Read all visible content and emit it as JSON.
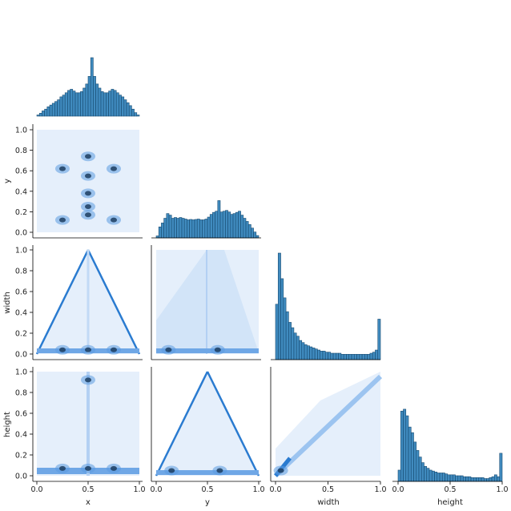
{
  "chart_data": {
    "type": "pairplot",
    "variables": [
      "x",
      "y",
      "width",
      "height"
    ],
    "corner": true,
    "diag_kind": "histogram",
    "offdiag_kind": "2d-histogram",
    "colors": {
      "hist": "#1f77b4",
      "hist_edge": "#1a4c72",
      "density_light": "#d7e7fa",
      "density_dark": "#1c3d60"
    },
    "axis_range": [
      0.0,
      1.0
    ],
    "ticks": [
      0.0,
      0.2,
      0.4,
      0.6,
      0.8,
      1.0
    ],
    "ticks_x": [
      0.0,
      0.5,
      1.0
    ],
    "tick_labels": [
      "0.0",
      "0.2",
      "0.4",
      "0.6",
      "0.8",
      "1.0"
    ],
    "tick_labels_x": [
      "0.0",
      "0.5",
      "1.0"
    ],
    "diagonal_histograms": [
      {
        "variable": "x",
        "bins": 40,
        "values": [
          0.02,
          0.05,
          0.09,
          0.12,
          0.16,
          0.19,
          0.22,
          0.25,
          0.28,
          0.33,
          0.36,
          0.4,
          0.44,
          0.46,
          0.43,
          0.4,
          0.4,
          0.42,
          0.48,
          0.55,
          0.68,
          1.0,
          0.68,
          0.55,
          0.48,
          0.42,
          0.4,
          0.4,
          0.43,
          0.46,
          0.44,
          0.4,
          0.36,
          0.33,
          0.28,
          0.23,
          0.18,
          0.12,
          0.06,
          0.02
        ]
      },
      {
        "variable": "y",
        "bins": 40,
        "values": [
          0.05,
          0.28,
          0.38,
          0.5,
          0.62,
          0.58,
          0.5,
          0.52,
          0.5,
          0.52,
          0.5,
          0.48,
          0.46,
          0.47,
          0.46,
          0.47,
          0.48,
          0.46,
          0.46,
          0.48,
          0.53,
          0.6,
          0.65,
          0.68,
          0.95,
          0.66,
          0.68,
          0.7,
          0.66,
          0.6,
          0.62,
          0.65,
          0.68,
          0.58,
          0.5,
          0.42,
          0.34,
          0.25,
          0.15,
          0.06
        ]
      },
      {
        "variable": "width",
        "bins": 40,
        "values": [
          0.52,
          1.0,
          0.76,
          0.58,
          0.45,
          0.35,
          0.3,
          0.25,
          0.22,
          0.18,
          0.16,
          0.14,
          0.13,
          0.12,
          0.11,
          0.1,
          0.09,
          0.08,
          0.08,
          0.07,
          0.07,
          0.06,
          0.06,
          0.06,
          0.06,
          0.05,
          0.05,
          0.05,
          0.05,
          0.05,
          0.05,
          0.05,
          0.05,
          0.05,
          0.05,
          0.05,
          0.06,
          0.07,
          0.09,
          0.38
        ]
      },
      {
        "variable": "height",
        "bins": 40,
        "values": [
          0.12,
          0.75,
          0.77,
          0.7,
          0.58,
          0.52,
          0.42,
          0.33,
          0.26,
          0.2,
          0.16,
          0.14,
          0.12,
          0.11,
          0.1,
          0.09,
          0.09,
          0.09,
          0.08,
          0.07,
          0.07,
          0.07,
          0.06,
          0.06,
          0.06,
          0.05,
          0.05,
          0.05,
          0.04,
          0.04,
          0.04,
          0.04,
          0.04,
          0.03,
          0.03,
          0.04,
          0.05,
          0.07,
          0.05,
          0.3
        ]
      }
    ],
    "pair_panels": [
      {
        "x": "x",
        "y": "y",
        "hotspots": [
          [
            0.25,
            0.62
          ],
          [
            0.5,
            0.74
          ],
          [
            0.75,
            0.62
          ],
          [
            0.5,
            0.55
          ],
          [
            0.5,
            0.38
          ],
          [
            0.5,
            0.25
          ],
          [
            0.5,
            0.17
          ],
          [
            0.25,
            0.12
          ],
          [
            0.75,
            0.12
          ]
        ]
      },
      {
        "x": "x",
        "y": "width",
        "hotspots": [
          [
            0.25,
            0.04
          ],
          [
            0.5,
            0.04
          ],
          [
            0.75,
            0.04
          ]
        ]
      },
      {
        "x": "y",
        "y": "width",
        "hotspots": [
          [
            0.12,
            0.04
          ],
          [
            0.6,
            0.04
          ]
        ]
      },
      {
        "x": "x",
        "y": "height",
        "hotspots": [
          [
            0.25,
            0.07
          ],
          [
            0.5,
            0.07
          ],
          [
            0.75,
            0.07
          ],
          [
            0.5,
            0.92
          ]
        ]
      },
      {
        "x": "y",
        "y": "height",
        "hotspots": [
          [
            0.15,
            0.05
          ],
          [
            0.62,
            0.05
          ]
        ]
      },
      {
        "x": "width",
        "y": "height",
        "hotspots": [
          [
            0.05,
            0.05
          ]
        ]
      }
    ]
  }
}
